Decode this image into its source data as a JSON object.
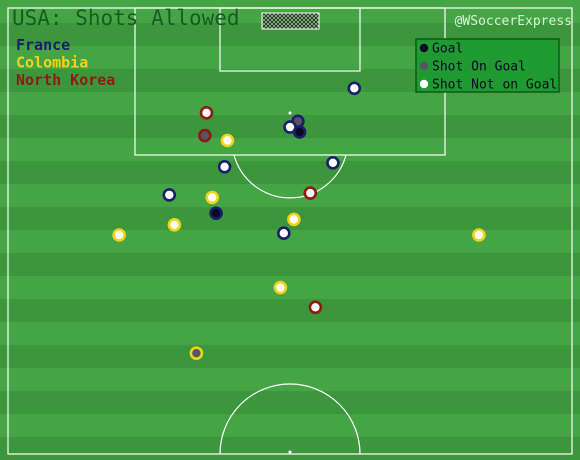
{
  "header": {
    "title": "USA: Shots Allowed",
    "credit": "@WSoccerExpress"
  },
  "teams": [
    {
      "name": "France",
      "color": "#1a1f6b"
    },
    {
      "name": "Colombia",
      "color": "#f2d21a"
    },
    {
      "name": "North Korea",
      "color": "#8e1a12"
    }
  ],
  "legend": {
    "items": [
      {
        "label": "Goal",
        "fill": "#0a0a24"
      },
      {
        "label": "Shot On Goal",
        "fill": "#555566"
      },
      {
        "label": "Shot Not on Goal",
        "fill": "#ffffff"
      }
    ]
  },
  "colors": {
    "pitch_light": "#45a545",
    "pitch_dark": "#3c963c",
    "lines": "#ffffff",
    "title": "#1a5a24",
    "credit": "#d9f0d9",
    "legend_bg": "#1e9a30"
  },
  "chart_data": {
    "type": "scatter",
    "x_range": [
      0,
      100
    ],
    "y_range": [
      0,
      100
    ],
    "points": [
      {
        "team": "France",
        "result": "Shot Not on Goal",
        "x": 61.4,
        "y": 18.0
      },
      {
        "team": "France",
        "result": "Shot On Goal",
        "x": 51.4,
        "y": 25.4
      },
      {
        "team": "France",
        "result": "Shot Not on Goal",
        "x": 50.0,
        "y": 26.7
      },
      {
        "team": "France",
        "result": "Goal",
        "x": 51.7,
        "y": 27.8
      },
      {
        "team": "France",
        "result": "Shot Not on Goal",
        "x": 57.6,
        "y": 34.7
      },
      {
        "team": "France",
        "result": "Shot Not on Goal",
        "x": 38.4,
        "y": 35.6
      },
      {
        "team": "France",
        "result": "Shot Not on Goal",
        "x": 28.6,
        "y": 41.9
      },
      {
        "team": "France",
        "result": "Goal",
        "x": 36.9,
        "y": 46.0
      },
      {
        "team": "France",
        "result": "Shot Not on Goal",
        "x": 48.9,
        "y": 50.5
      },
      {
        "team": "Colombia",
        "result": "Shot Not on Goal",
        "x": 38.9,
        "y": 29.7
      },
      {
        "team": "Colombia",
        "result": "Shot Not on Goal",
        "x": 36.2,
        "y": 42.5
      },
      {
        "team": "Colombia",
        "result": "Shot Not on Goal",
        "x": 50.7,
        "y": 47.4
      },
      {
        "team": "Colombia",
        "result": "Shot Not on Goal",
        "x": 29.5,
        "y": 48.6
      },
      {
        "team": "Colombia",
        "result": "Shot Not on Goal",
        "x": 19.7,
        "y": 50.9
      },
      {
        "team": "Colombia",
        "result": "Shot Not on Goal",
        "x": 83.5,
        "y": 50.9
      },
      {
        "team": "Colombia",
        "result": "Shot Not on Goal",
        "x": 48.3,
        "y": 62.7
      },
      {
        "team": "Colombia",
        "result": "Shot On Goal",
        "x": 33.4,
        "y": 77.4
      },
      {
        "team": "North Korea",
        "result": "Shot Not on Goal",
        "x": 35.2,
        "y": 23.5
      },
      {
        "team": "North Korea",
        "result": "Shot On Goal",
        "x": 34.9,
        "y": 28.6
      },
      {
        "team": "North Korea",
        "result": "Shot Not on Goal",
        "x": 53.6,
        "y": 41.5
      },
      {
        "team": "North Korea",
        "result": "Shot Not on Goal",
        "x": 54.5,
        "y": 67.1
      }
    ]
  }
}
